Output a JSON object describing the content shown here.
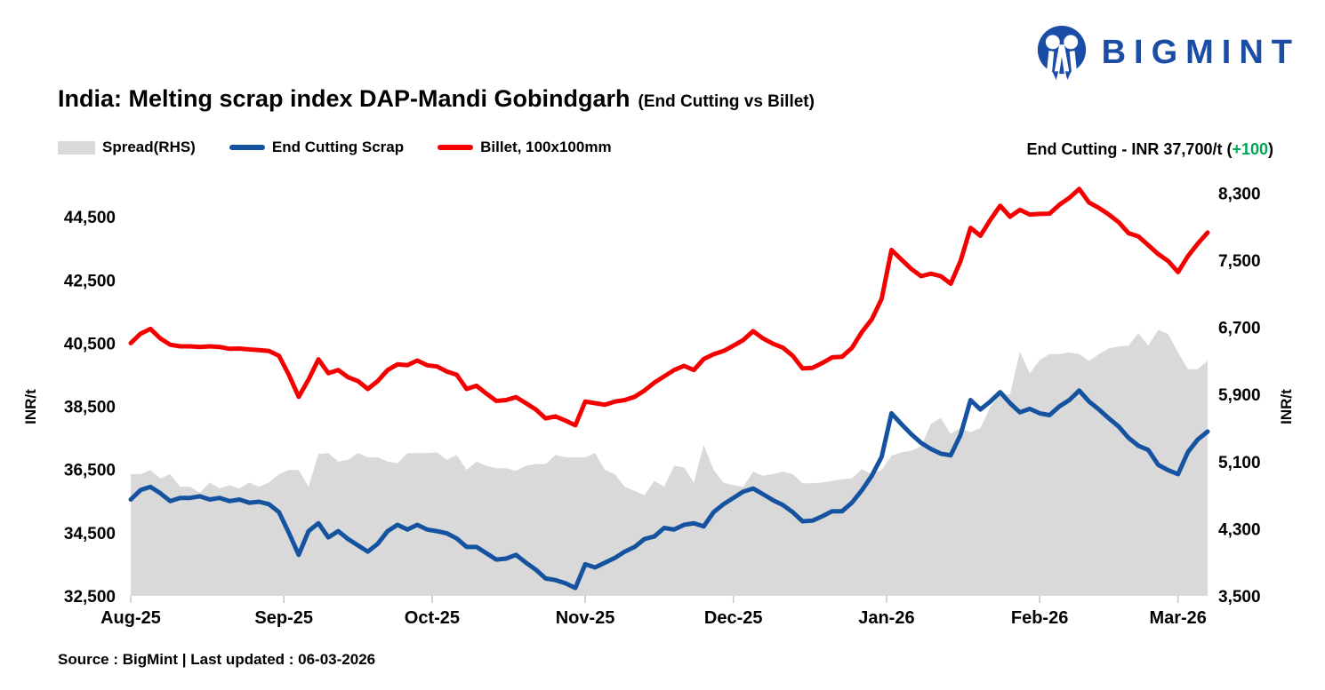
{
  "logo": {
    "wordmark": "BIGMINT",
    "color": "#1b4da6"
  },
  "title": {
    "main": "India: Melting scrap index DAP-Mandi Gobindgarh",
    "suffix": "(End Cutting vs Billet)"
  },
  "legend": {
    "items": [
      {
        "label": "Spread(RHS)",
        "swatch": "gray-area",
        "color": "#d9d9d9"
      },
      {
        "label": "End Cutting Scrap",
        "swatch": "line",
        "color": "#1553a0"
      },
      {
        "label": "Billet, 100x100mm",
        "swatch": "line",
        "color": "#f40000"
      }
    ]
  },
  "annotation": {
    "prefix": "End Cutting - INR 37,700/t (",
    "change": "+100",
    "suffix": ")",
    "change_color": "#00a651"
  },
  "footer": {
    "text": "Source : BigMint | Last updated : 06-03-2026"
  },
  "chart_data": {
    "type": "line",
    "title": "India: Melting scrap index DAP-Mandi Gobindgarh (End Cutting vs Billet)",
    "grid": "off",
    "sample_step_days": 2,
    "x_axis": {
      "total_days": 218,
      "month_ticks": [
        {
          "day": 0,
          "label": "Aug-25"
        },
        {
          "day": 31,
          "label": "Sep-25"
        },
        {
          "day": 61,
          "label": "Oct-25"
        },
        {
          "day": 92,
          "label": "Nov-25"
        },
        {
          "day": 122,
          "label": "Dec-25"
        },
        {
          "day": 153,
          "label": "Jan-26"
        },
        {
          "day": 184,
          "label": "Feb-26"
        },
        {
          "day": 212,
          "label": "Mar-26"
        }
      ]
    },
    "left_axis": {
      "title": "INR/t",
      "min": 32500,
      "max": 45600,
      "ticks": [
        {
          "value": 44500,
          "label": "44,500"
        },
        {
          "value": 42500,
          "label": "42,500"
        },
        {
          "value": 40500,
          "label": "40,500"
        },
        {
          "value": 38500,
          "label": "38,500"
        },
        {
          "value": 36500,
          "label": "36,500"
        },
        {
          "value": 34500,
          "label": "34,500"
        },
        {
          "value": 32500,
          "label": "32,500"
        }
      ]
    },
    "right_axis": {
      "title": "INR/t",
      "min": 3500,
      "max": 8430,
      "ticks": [
        {
          "value": 8300,
          "label": "8,300"
        },
        {
          "value": 7500,
          "label": "7,500"
        },
        {
          "value": 6700,
          "label": "6,700"
        },
        {
          "value": 5900,
          "label": "5,900"
        },
        {
          "value": 5100,
          "label": "5,100"
        },
        {
          "value": 4300,
          "label": "4,300"
        },
        {
          "value": 3500,
          "label": "3,500"
        }
      ]
    },
    "series": [
      {
        "name": "End Cutting Scrap",
        "axis": "left",
        "color": "#1553a0",
        "style": "line",
        "values": [
          35550,
          35850,
          35950,
          35750,
          35500,
          35600,
          35600,
          35650,
          35550,
          35600,
          35500,
          35550,
          35450,
          35480,
          35400,
          35150,
          34500,
          33800,
          34550,
          34800,
          34350,
          34550,
          34300,
          34100,
          33900,
          34150,
          34550,
          34750,
          34600,
          34750,
          34600,
          34550,
          34480,
          34320,
          34050,
          34050,
          33850,
          33650,
          33680,
          33800,
          33550,
          33330,
          33050,
          33000,
          32900,
          32750,
          33500,
          33400,
          33550,
          33700,
          33900,
          34050,
          34300,
          34380,
          34650,
          34600,
          34750,
          34800,
          34700,
          35150,
          35400,
          35600,
          35800,
          35900,
          35720,
          35530,
          35380,
          35150,
          34860,
          34880,
          35020,
          35180,
          35180,
          35450,
          35840,
          36300,
          36900,
          38280,
          37940,
          37620,
          37340,
          37150,
          37000,
          36950,
          37600,
          38700,
          38400,
          38650,
          38950,
          38600,
          38310,
          38420,
          38280,
          38220,
          38500,
          38700,
          39000,
          38650,
          38400,
          38120,
          37860,
          37500,
          37250,
          37120,
          36650,
          36480,
          36350,
          37050,
          37450,
          37700
        ]
      },
      {
        "name": "Billet, 100x100mm",
        "axis": "left",
        "color": "#f40000",
        "style": "line",
        "values": [
          40500,
          40800,
          40950,
          40650,
          40450,
          40400,
          40400,
          40380,
          40400,
          40380,
          40320,
          40330,
          40300,
          40280,
          40250,
          40100,
          39500,
          38800,
          39350,
          39990,
          39550,
          39650,
          39420,
          39300,
          39050,
          39300,
          39650,
          39830,
          39800,
          39950,
          39800,
          39760,
          39600,
          39500,
          39050,
          39150,
          38900,
          38670,
          38700,
          38790,
          38600,
          38400,
          38120,
          38180,
          38050,
          37900,
          38650,
          38600,
          38550,
          38650,
          38700,
          38800,
          39000,
          39250,
          39450,
          39650,
          39780,
          39650,
          40000,
          40150,
          40250,
          40420,
          40600,
          40880,
          40650,
          40480,
          40360,
          40100,
          39700,
          39720,
          39870,
          40050,
          40070,
          40350,
          40850,
          41250,
          41900,
          43450,
          43150,
          42850,
          42620,
          42700,
          42620,
          42380,
          43100,
          44150,
          43900,
          44400,
          44850,
          44500,
          44720,
          44570,
          44590,
          44600,
          44880,
          45100,
          45380,
          44950,
          44780,
          44570,
          44330,
          43980,
          43880,
          43600,
          43320,
          43100,
          42750,
          43250,
          43650,
          44000
        ]
      },
      {
        "name": "Spread(RHS)",
        "axis": "right",
        "color": "#d9d9d9",
        "style": "area",
        "derived_as": "Billet minus End Cutting"
      }
    ],
    "last_point": {
      "series": "End Cutting Scrap",
      "value": 37700,
      "day_over_day_change": 100
    }
  }
}
